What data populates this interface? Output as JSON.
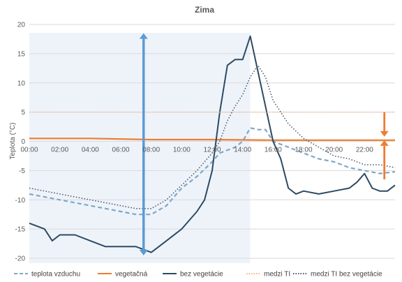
{
  "chart_data": {
    "type": "line",
    "title": "Zima",
    "xlabel": "",
    "ylabel": "Teplota (°C)",
    "ylim": [
      -20,
      20
    ],
    "yticks": [
      -20,
      -15,
      -10,
      -5,
      0,
      5,
      10,
      15,
      20
    ],
    "xlim": [
      0,
      24
    ],
    "xtick_labels": [
      "00:00",
      "02:00",
      "04:00",
      "06:00",
      "08:00",
      "10:00",
      "12:00",
      "14:00",
      "16:00",
      "18:00",
      "20:00",
      "22:00"
    ],
    "xtick_values": [
      0,
      2,
      4,
      6,
      8,
      10,
      12,
      14,
      16,
      18,
      20,
      22
    ],
    "grid": "horizontal",
    "legend": "bottom",
    "highlight_region": {
      "x_start": 0,
      "x_end": 14.5,
      "color": "#eef3fa"
    },
    "annotations": [
      {
        "type": "double-arrow",
        "x": 7.5,
        "y_from": -19.5,
        "y_to": 18.5,
        "color": "#5b9bd5"
      },
      {
        "type": "arrow",
        "x": 23.3,
        "y_from": 5,
        "y_to": 0.8,
        "color": "#ed7d31"
      },
      {
        "type": "arrow",
        "x": 23.3,
        "y_from": -6.5,
        "y_to": 0.2,
        "color": "#ed7d31"
      }
    ],
    "series": [
      {
        "name": "teplota vzduchu",
        "color": "#7fa7c8",
        "style": "dashed",
        "points": [
          [
            0,
            -9
          ],
          [
            1,
            -9.5
          ],
          [
            2,
            -10
          ],
          [
            3,
            -10.5
          ],
          [
            4,
            -11
          ],
          [
            5,
            -11.5
          ],
          [
            6,
            -12
          ],
          [
            7,
            -12.5
          ],
          [
            8,
            -12.5
          ],
          [
            9,
            -11
          ],
          [
            10,
            -8
          ],
          [
            11,
            -6
          ],
          [
            12,
            -3.5
          ],
          [
            12.5,
            -2
          ],
          [
            13,
            -1.5
          ],
          [
            13.5,
            -1
          ],
          [
            14,
            0
          ],
          [
            14.5,
            2.3
          ],
          [
            15,
            2
          ],
          [
            15.5,
            2
          ],
          [
            16,
            0
          ],
          [
            17,
            -1
          ],
          [
            18,
            -2
          ],
          [
            19,
            -3
          ],
          [
            20,
            -3.5
          ],
          [
            21,
            -4.5
          ],
          [
            22,
            -5
          ],
          [
            23,
            -5.5
          ],
          [
            24,
            -5.2
          ]
        ]
      },
      {
        "name": "vegetačná",
        "color": "#ed7d31",
        "style": "solid",
        "points": [
          [
            0,
            0.5
          ],
          [
            4,
            0.5
          ],
          [
            8,
            0.3
          ],
          [
            12,
            0.3
          ],
          [
            16,
            0.2
          ],
          [
            20,
            0.2
          ],
          [
            24,
            0.2
          ]
        ]
      },
      {
        "name": "bez vegetácie",
        "color": "#2e4a62",
        "style": "solid",
        "points": [
          [
            0,
            -14
          ],
          [
            1,
            -15
          ],
          [
            1.5,
            -17
          ],
          [
            2,
            -16
          ],
          [
            3,
            -16
          ],
          [
            4,
            -17
          ],
          [
            5,
            -18
          ],
          [
            6,
            -18
          ],
          [
            7,
            -18
          ],
          [
            8,
            -19
          ],
          [
            8.5,
            -18
          ],
          [
            9,
            -17
          ],
          [
            10,
            -15
          ],
          [
            11,
            -12
          ],
          [
            11.5,
            -10
          ],
          [
            12,
            -5
          ],
          [
            12.5,
            5
          ],
          [
            13,
            13
          ],
          [
            13.5,
            14
          ],
          [
            14,
            14
          ],
          [
            14.5,
            18
          ],
          [
            15,
            12
          ],
          [
            15.5,
            6
          ],
          [
            16,
            0
          ],
          [
            16.5,
            -3
          ],
          [
            17,
            -8
          ],
          [
            17.5,
            -9
          ],
          [
            18,
            -8.5
          ],
          [
            19,
            -9
          ],
          [
            20,
            -8.5
          ],
          [
            21,
            -8
          ],
          [
            21.5,
            -7
          ],
          [
            22,
            -5.5
          ],
          [
            22.5,
            -8
          ],
          [
            23,
            -8.5
          ],
          [
            23.5,
            -8.5
          ],
          [
            24,
            -7.5
          ]
        ]
      },
      {
        "name": "medzi TI",
        "color": "#f4b183",
        "style": "dotted",
        "points": [
          [
            0,
            5
          ],
          [
            24,
            5
          ]
        ]
      },
      {
        "name": "medzi TI bez vegetácie",
        "color": "#44546a",
        "style": "dotted",
        "points": [
          [
            0,
            -8
          ],
          [
            2,
            -9
          ],
          [
            4,
            -10
          ],
          [
            6,
            -11
          ],
          [
            7,
            -11.5
          ],
          [
            8,
            -11.5
          ],
          [
            9,
            -10
          ],
          [
            10,
            -7.5
          ],
          [
            11,
            -5
          ],
          [
            12,
            -2
          ],
          [
            12.5,
            0
          ],
          [
            13,
            3.5
          ],
          [
            13.5,
            6
          ],
          [
            14,
            8
          ],
          [
            14.5,
            11
          ],
          [
            15,
            13
          ],
          [
            15.5,
            11
          ],
          [
            16,
            7
          ],
          [
            17,
            3
          ],
          [
            18,
            0.5
          ],
          [
            19,
            -1
          ],
          [
            20,
            -2.5
          ],
          [
            21,
            -3
          ],
          [
            22,
            -4
          ],
          [
            23,
            -4
          ],
          [
            24,
            -4.5
          ]
        ]
      }
    ]
  }
}
